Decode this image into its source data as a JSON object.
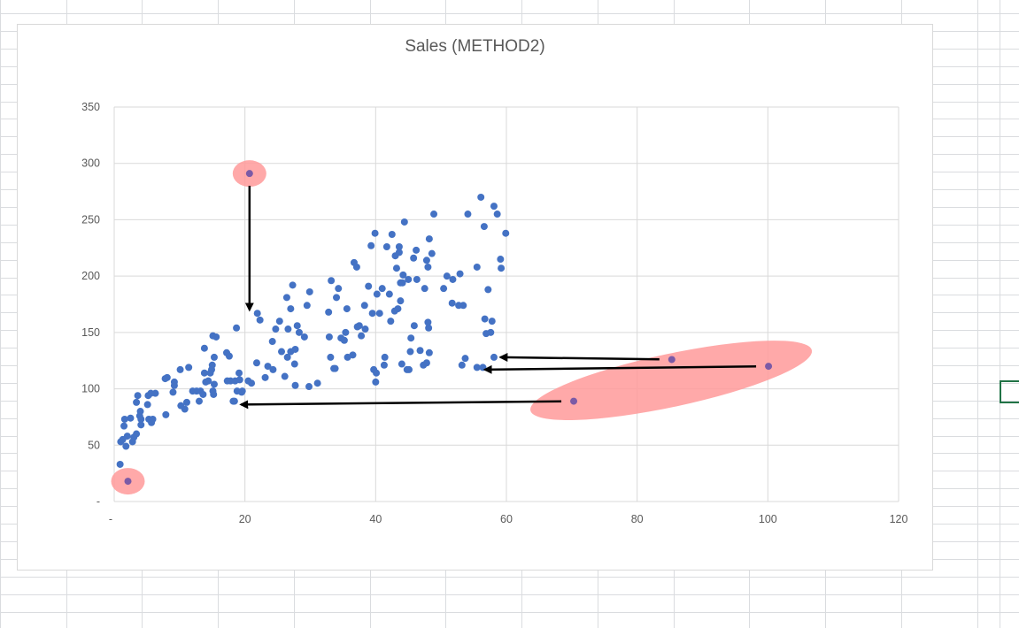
{
  "chart_data": {
    "type": "scatter",
    "title": "Sales (METHOD2)",
    "xlabel": "",
    "ylabel": "",
    "xlim": [
      0,
      120
    ],
    "ylim": [
      0,
      350
    ],
    "x_ticks": [
      {
        "value": 0,
        "label": "-"
      },
      {
        "value": 20,
        "label": "20"
      },
      {
        "value": 40,
        "label": "40"
      },
      {
        "value": 60,
        "label": "60"
      },
      {
        "value": 80,
        "label": "80"
      },
      {
        "value": 100,
        "label": "100"
      },
      {
        "value": 120,
        "label": "120"
      }
    ],
    "y_ticks": [
      {
        "value": 0,
        "label": "-"
      },
      {
        "value": 50,
        "label": "50"
      },
      {
        "value": 100,
        "label": "100"
      },
      {
        "value": 150,
        "label": "150"
      },
      {
        "value": 200,
        "label": "200"
      },
      {
        "value": 250,
        "label": "250"
      },
      {
        "value": 300,
        "label": "300"
      },
      {
        "value": 350,
        "label": "350"
      }
    ],
    "grid": true,
    "legend": "none",
    "series_color": "#4472c4",
    "outlier_color": "#7b5aa6",
    "highlight_color": "#ff9a9a",
    "arrow_color": "#000000",
    "points": [
      [
        0.9,
        33
      ],
      [
        1.0,
        53
      ],
      [
        1.3,
        55
      ],
      [
        1.5,
        67
      ],
      [
        1.6,
        73
      ],
      [
        1.8,
        49
      ],
      [
        2.0,
        58
      ],
      [
        2.5,
        74
      ],
      [
        2.8,
        53
      ],
      [
        3.0,
        57
      ],
      [
        3.4,
        60
      ],
      [
        3.4,
        88
      ],
      [
        3.6,
        94
      ],
      [
        3.9,
        76
      ],
      [
        4.0,
        80
      ],
      [
        4.1,
        73
      ],
      [
        4.1,
        68
      ],
      [
        5.1,
        86
      ],
      [
        5.2,
        94
      ],
      [
        5.3,
        73
      ],
      [
        5.6,
        96
      ],
      [
        5.7,
        70
      ],
      [
        5.9,
        73
      ],
      [
        6.3,
        96
      ],
      [
        7.8,
        109
      ],
      [
        7.9,
        77
      ],
      [
        8.1,
        110
      ],
      [
        9.0,
        97
      ],
      [
        9.2,
        103
      ],
      [
        9.2,
        106
      ],
      [
        10.1,
        117
      ],
      [
        10.2,
        85
      ],
      [
        10.8,
        82
      ],
      [
        11.1,
        88
      ],
      [
        11.4,
        119
      ],
      [
        12.0,
        98
      ],
      [
        12.6,
        98
      ],
      [
        13.0,
        89
      ],
      [
        13.2,
        98
      ],
      [
        13.6,
        95
      ],
      [
        13.8,
        114
      ],
      [
        13.8,
        136
      ],
      [
        14.0,
        106
      ],
      [
        14.4,
        107
      ],
      [
        14.7,
        114
      ],
      [
        14.9,
        117
      ],
      [
        15.0,
        121
      ],
      [
        15.1,
        98
      ],
      [
        15.1,
        147
      ],
      [
        15.2,
        95
      ],
      [
        15.3,
        104
      ],
      [
        15.3,
        128
      ],
      [
        15.6,
        146
      ],
      [
        17.2,
        132
      ],
      [
        17.3,
        107
      ],
      [
        17.6,
        129
      ],
      [
        17.8,
        107
      ],
      [
        18.2,
        89
      ],
      [
        18.5,
        107
      ],
      [
        18.7,
        154
      ],
      [
        18.8,
        98
      ],
      [
        19.1,
        114
      ],
      [
        19.2,
        108
      ],
      [
        19.5,
        97
      ],
      [
        19.6,
        98
      ],
      [
        20.5,
        107
      ],
      [
        21.0,
        105
      ],
      [
        21.8,
        123
      ],
      [
        21.9,
        167
      ],
      [
        22.3,
        161
      ],
      [
        23.1,
        110
      ],
      [
        23.5,
        120
      ],
      [
        24.2,
        142
      ],
      [
        24.3,
        117
      ],
      [
        24.7,
        153
      ],
      [
        25.3,
        160
      ],
      [
        25.6,
        133
      ],
      [
        26.1,
        111
      ],
      [
        26.4,
        181
      ],
      [
        26.5,
        128
      ],
      [
        26.6,
        153
      ],
      [
        27.0,
        171
      ],
      [
        27.0,
        133
      ],
      [
        27.3,
        192
      ],
      [
        27.6,
        122
      ],
      [
        27.7,
        103
      ],
      [
        27.7,
        135
      ],
      [
        28.0,
        156
      ],
      [
        28.3,
        150
      ],
      [
        29.1,
        146
      ],
      [
        29.5,
        174
      ],
      [
        29.8,
        102
      ],
      [
        29.9,
        186
      ],
      [
        31.1,
        105
      ],
      [
        32.8,
        168
      ],
      [
        32.9,
        146
      ],
      [
        33.1,
        128
      ],
      [
        33.2,
        196
      ],
      [
        33.6,
        118
      ],
      [
        33.8,
        118
      ],
      [
        34.0,
        181
      ],
      [
        34.3,
        189
      ],
      [
        34.7,
        145
      ],
      [
        35.2,
        143
      ],
      [
        35.4,
        150
      ],
      [
        35.6,
        171
      ],
      [
        35.7,
        128
      ],
      [
        36.5,
        130
      ],
      [
        36.7,
        212
      ],
      [
        37.1,
        208
      ],
      [
        37.2,
        155
      ],
      [
        37.5,
        156
      ],
      [
        37.8,
        147
      ],
      [
        38.3,
        174
      ],
      [
        38.4,
        153
      ],
      [
        38.9,
        191
      ],
      [
        39.3,
        227
      ],
      [
        39.5,
        167
      ],
      [
        39.7,
        117
      ],
      [
        39.9,
        238
      ],
      [
        40.0,
        106
      ],
      [
        40.1,
        114
      ],
      [
        40.2,
        184
      ],
      [
        40.6,
        167
      ],
      [
        41.0,
        189
      ],
      [
        41.3,
        121
      ],
      [
        41.4,
        128
      ],
      [
        41.7,
        226
      ],
      [
        42.1,
        184
      ],
      [
        42.3,
        160
      ],
      [
        42.5,
        237
      ],
      [
        42.9,
        169
      ],
      [
        43.0,
        218
      ],
      [
        43.2,
        207
      ],
      [
        43.4,
        171
      ],
      [
        43.6,
        226
      ],
      [
        43.6,
        221
      ],
      [
        43.8,
        178
      ],
      [
        43.8,
        194
      ],
      [
        44.0,
        122
      ],
      [
        44.1,
        194
      ],
      [
        44.2,
        201
      ],
      [
        44.4,
        248
      ],
      [
        44.8,
        117
      ],
      [
        45.0,
        197
      ],
      [
        45.1,
        117
      ],
      [
        45.3,
        133
      ],
      [
        45.4,
        145
      ],
      [
        45.8,
        216
      ],
      [
        45.9,
        156
      ],
      [
        46.2,
        223
      ],
      [
        46.3,
        197
      ],
      [
        46.8,
        134
      ],
      [
        47.3,
        121
      ],
      [
        47.5,
        189
      ],
      [
        47.8,
        123
      ],
      [
        47.8,
        214
      ],
      [
        48.0,
        208
      ],
      [
        48.0,
        159
      ],
      [
        48.1,
        154
      ],
      [
        48.2,
        132
      ],
      [
        48.2,
        233
      ],
      [
        48.6,
        220
      ],
      [
        48.9,
        255
      ],
      [
        50.4,
        189
      ],
      [
        50.9,
        200
      ],
      [
        51.7,
        176
      ],
      [
        51.8,
        197
      ],
      [
        52.7,
        174
      ],
      [
        52.9,
        202
      ],
      [
        53.2,
        121
      ],
      [
        53.4,
        174
      ],
      [
        53.7,
        127
      ],
      [
        54.1,
        255
      ],
      [
        55.5,
        208
      ],
      [
        55.5,
        119
      ],
      [
        56.1,
        270
      ],
      [
        56.6,
        244
      ],
      [
        56.7,
        162
      ],
      [
        56.9,
        149
      ],
      [
        57.2,
        188
      ],
      [
        57.6,
        150
      ],
      [
        57.8,
        160
      ],
      [
        58.1,
        262
      ],
      [
        58.6,
        255
      ],
      [
        59.1,
        215
      ],
      [
        59.2,
        207
      ],
      [
        59.9,
        238
      ],
      [
        18.4,
        89
      ],
      [
        56.4,
        119
      ],
      [
        58.1,
        128
      ]
    ],
    "outliers": [
      [
        20.7,
        291
      ],
      [
        2.1,
        18
      ],
      [
        70.3,
        89
      ],
      [
        100.1,
        120
      ],
      [
        85.3,
        126
      ]
    ],
    "corrections": [
      {
        "from": [
          20.7,
          291
        ],
        "to": [
          20.7,
          170
        ]
      },
      {
        "from": [
          70.3,
          89
        ],
        "to": [
          19.4,
          86
        ]
      },
      {
        "from": [
          100.1,
          120
        ],
        "to": [
          56.7,
          117
        ]
      },
      {
        "from": [
          85.3,
          126
        ],
        "to": [
          59.1,
          128
        ]
      }
    ],
    "highlights": [
      {
        "type": "circle",
        "cx": 20.7,
        "cy": 291
      },
      {
        "type": "circle",
        "cx": 2.1,
        "cy": 18
      },
      {
        "type": "ellipse",
        "around": [
          [
            70.3,
            89
          ],
          [
            100.1,
            120
          ],
          [
            85.3,
            126
          ]
        ]
      }
    ]
  }
}
